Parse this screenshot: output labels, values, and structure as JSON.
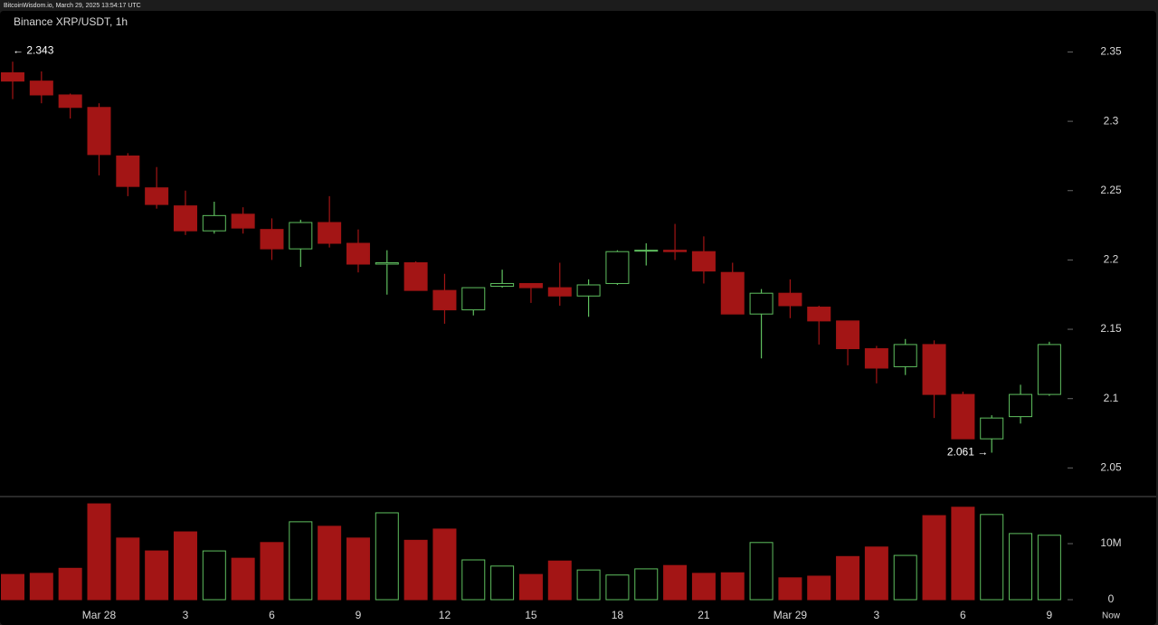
{
  "header": "BitcoinWisdom.io, March 29, 2025 13:54:17 UTC",
  "chart_data": {
    "type": "candlestick",
    "title": "Binance XRP/USDT, 1h",
    "categories": [
      null,
      null,
      null,
      "Mar 28",
      null,
      null,
      "3",
      null,
      null,
      "6",
      null,
      null,
      "9",
      null,
      null,
      "12",
      null,
      null,
      "15",
      null,
      null,
      "18",
      null,
      null,
      "21",
      null,
      null,
      "Mar 29",
      null,
      null,
      "3",
      null,
      null,
      "6",
      null,
      null,
      "9"
    ],
    "now_label": "Now",
    "open": [
      2.335,
      2.329,
      2.319,
      2.31,
      2.275,
      2.252,
      2.239,
      2.221,
      2.233,
      2.222,
      2.208,
      2.227,
      2.212,
      2.197,
      2.198,
      2.178,
      2.164,
      2.181,
      2.183,
      2.18,
      2.174,
      2.183,
      2.207,
      2.207,
      2.206,
      2.191,
      2.161,
      2.176,
      2.166,
      2.156,
      2.136,
      2.123,
      2.139,
      2.103,
      2.071,
      2.087,
      2.103
    ],
    "high": [
      2.343,
      2.336,
      2.32,
      2.313,
      2.277,
      2.267,
      2.25,
      2.242,
      2.238,
      2.23,
      2.229,
      2.246,
      2.222,
      2.207,
      2.199,
      2.19,
      2.18,
      2.193,
      2.183,
      2.198,
      2.186,
      2.207,
      2.212,
      2.226,
      2.217,
      2.198,
      2.179,
      2.186,
      2.167,
      2.156,
      2.138,
      2.143,
      2.142,
      2.105,
      2.088,
      2.11,
      2.141
    ],
    "low": [
      2.316,
      2.313,
      2.302,
      2.261,
      2.246,
      2.237,
      2.218,
      2.219,
      2.219,
      2.2,
      2.195,
      2.209,
      2.191,
      2.175,
      2.178,
      2.154,
      2.16,
      2.18,
      2.169,
      2.167,
      2.159,
      2.182,
      2.196,
      2.2,
      2.183,
      2.161,
      2.129,
      2.158,
      2.139,
      2.124,
      2.111,
      2.117,
      2.086,
      2.071,
      2.061,
      2.082,
      2.102
    ],
    "close": [
      2.329,
      2.319,
      2.31,
      2.276,
      2.253,
      2.24,
      2.221,
      2.232,
      2.223,
      2.208,
      2.227,
      2.212,
      2.197,
      2.198,
      2.178,
      2.164,
      2.18,
      2.183,
      2.18,
      2.174,
      2.182,
      2.206,
      2.207,
      2.206,
      2.192,
      2.161,
      2.176,
      2.167,
      2.156,
      2.136,
      2.122,
      2.139,
      2.103,
      2.071,
      2.086,
      2.103,
      2.139
    ],
    "volume": [
      4500000,
      4700000,
      5600000,
      17100000,
      11000000,
      8700000,
      12100000,
      8700000,
      7400000,
      10200000,
      13900000,
      13100000,
      11000000,
      15500000,
      10600000,
      12600000,
      7100000,
      6000000,
      4500000,
      6900000,
      5300000,
      4400000,
      5500000,
      6100000,
      4700000,
      4800000,
      10200000,
      3900000,
      4200000,
      7700000,
      9400000,
      7900000,
      15000000,
      16500000,
      15200000,
      11800000,
      11500000
    ],
    "ylim": [
      2.03,
      2.379
    ],
    "yticks": [
      2.05,
      2.1,
      2.15,
      2.2,
      2.25,
      2.3,
      2.35
    ],
    "volume_ylim": [
      0,
      18400000
    ],
    "volume_ticks": [
      0,
      {
        "value": 10000000,
        "label": "10M"
      }
    ],
    "annotations": [
      {
        "label": "← 2.343",
        "index": 0,
        "value": 2.343
      },
      {
        "label": "2.061 →",
        "index": 34,
        "value": 2.061
      }
    ],
    "up_color": "#5fbf5f",
    "down_color": "#a31515",
    "background": "#000000"
  }
}
